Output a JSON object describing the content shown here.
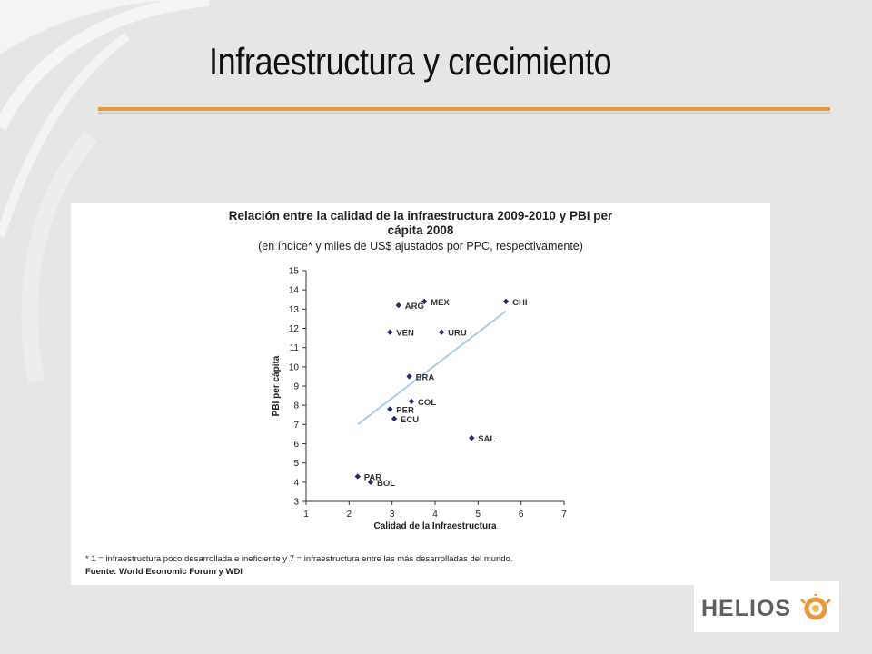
{
  "slide": {
    "title": "Infraestructura y crecimiento",
    "logo_text": "HELIOS",
    "accent_color": "#e8973d"
  },
  "chart": {
    "title_line1": "Relación entre la calidad de la infraestructura 2009-2010 y PBI per",
    "title_line2": "cápita 2008",
    "subtitle": "(en índice* y miles de US$ ajustados por PPC, respectivamente)",
    "footnote": "* 1 = infraestructura poco desarrollada e ineficiente y 7 = infraestructura entre las más desarrolladas del mundo.",
    "source": "Fuente: World Economic Forum y WDI"
  },
  "chart_data": {
    "type": "scatter",
    "title": "Relación entre la calidad de la infraestructura 2009-2010 y PBI per cápita 2008",
    "subtitle": "(en índice* y miles de US$ ajustados por PPC, respectivamente)",
    "xlabel": "Calidad de la Infraestructura",
    "ylabel": "PBI per cápita",
    "xlim": [
      1,
      7
    ],
    "ylim": [
      3,
      15
    ],
    "xticks": [
      1,
      2,
      3,
      4,
      5,
      6,
      7
    ],
    "yticks": [
      3,
      4,
      5,
      6,
      7,
      8,
      9,
      10,
      11,
      12,
      13,
      14,
      15
    ],
    "grid": false,
    "marker_color": "#1f2d6b",
    "trendline_color": "#a9cdec",
    "trendline": {
      "x": [
        2.2,
        5.65
      ],
      "y": [
        7.0,
        12.9
      ]
    },
    "points": [
      {
        "label": "ARG",
        "x": 3.15,
        "y": 13.2
      },
      {
        "label": "MEX",
        "x": 3.75,
        "y": 13.4
      },
      {
        "label": "CHI",
        "x": 5.65,
        "y": 13.4
      },
      {
        "label": "VEN",
        "x": 2.95,
        "y": 11.8
      },
      {
        "label": "URU",
        "x": 4.15,
        "y": 11.8
      },
      {
        "label": "BRA",
        "x": 3.4,
        "y": 9.5
      },
      {
        "label": "COL",
        "x": 3.45,
        "y": 8.2
      },
      {
        "label": "PER",
        "x": 2.95,
        "y": 7.8
      },
      {
        "label": "ECU",
        "x": 3.05,
        "y": 7.3
      },
      {
        "label": "SAL",
        "x": 4.85,
        "y": 6.3
      },
      {
        "label": "PAR",
        "x": 2.2,
        "y": 4.3
      },
      {
        "label": "BOL",
        "x": 2.5,
        "y": 4.0
      }
    ]
  }
}
